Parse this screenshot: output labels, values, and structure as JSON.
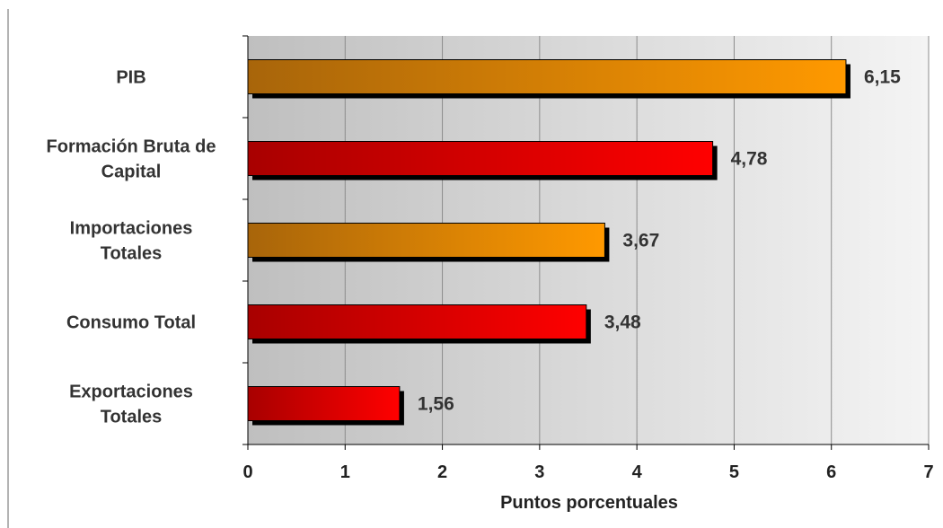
{
  "chart_data": {
    "type": "bar",
    "orientation": "horizontal",
    "categories": [
      [
        "PIB"
      ],
      [
        "Formación Bruta de",
        "Capital"
      ],
      [
        "Importaciones",
        "Totales"
      ],
      [
        "Consumo Total"
      ],
      [
        "Exportaciones",
        "Totales"
      ]
    ],
    "values": [
      6.15,
      4.78,
      3.67,
      3.48,
      1.56
    ],
    "value_labels": [
      "6,15",
      "4,78",
      "3,67",
      "3,48",
      "1,56"
    ],
    "bar_colors": [
      "orange",
      "red",
      "orange",
      "red",
      "red"
    ],
    "xlabel": "Puntos porcentuales",
    "xlim": [
      0,
      7
    ],
    "xticks": [
      0,
      1,
      2,
      3,
      4,
      5,
      6,
      7
    ],
    "grid": "vertical",
    "legend": "none"
  },
  "colors": {
    "orange_dark": "#a8650a",
    "orange_light": "#ff9900",
    "red_dark": "#a80000",
    "red_light": "#ff0000",
    "plot_bg_left": "#bfbfbf",
    "plot_bg_right": "#f4f4f4",
    "gridline": "#8c8c8c",
    "shadow": "#000000"
  }
}
